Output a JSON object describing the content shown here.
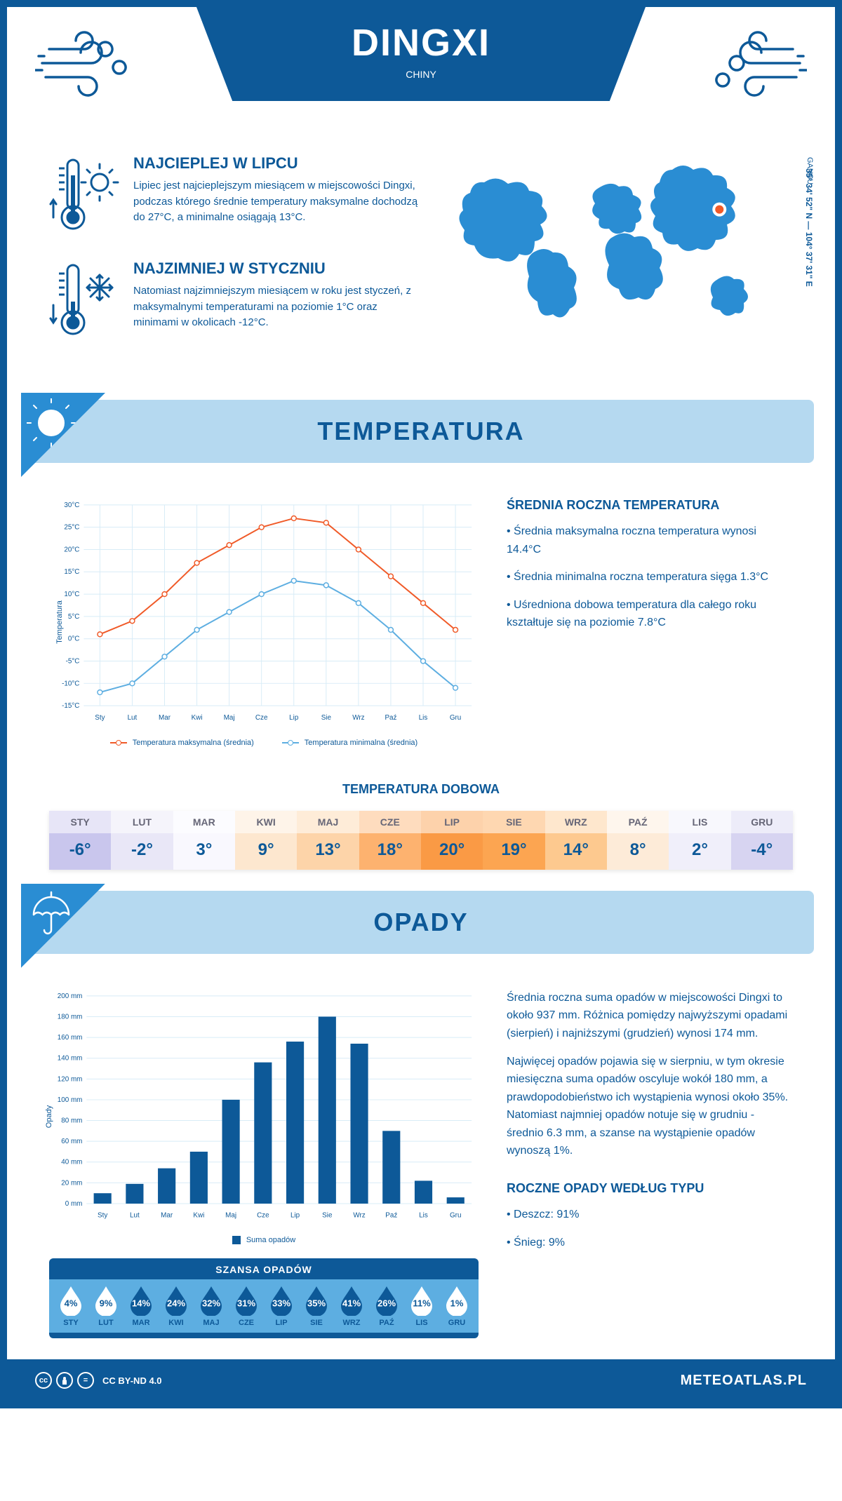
{
  "header": {
    "city": "DINGXI",
    "country": "CHINY",
    "region": "GANSU",
    "coordinates": "35° 34' 52\" N — 104° 37' 31\" E",
    "marker_lon": 104.6,
    "marker_lat": 35.6
  },
  "facts": {
    "warmest": {
      "title": "NAJCIEPLEJ W LIPCU",
      "text": "Lipiec jest najcieplejszym miesiącem w miejscowości Dingxi, podczas którego średnie temperatury maksymalne dochodzą do 27°C, a minimalne osiągają 13°C."
    },
    "coldest": {
      "title": "NAJZIMNIEJ W STYCZNIU",
      "text": "Natomiast najzimniejszym miesiącem w roku jest styczeń, z maksymalnymi temperaturami na poziomie 1°C oraz minimami w okolicach -12°C."
    }
  },
  "sections": {
    "temperature_title": "TEMPERATURA",
    "precip_title": "OPADY",
    "daily_temp_title": "TEMPERATURA DOBOWA"
  },
  "months": [
    "Sty",
    "Lut",
    "Mar",
    "Kwi",
    "Maj",
    "Cze",
    "Lip",
    "Sie",
    "Wrz",
    "Paź",
    "Lis",
    "Gru"
  ],
  "months_upper": [
    "STY",
    "LUT",
    "MAR",
    "KWI",
    "MAJ",
    "CZE",
    "LIP",
    "SIE",
    "WRZ",
    "PAŹ",
    "LIS",
    "GRU"
  ],
  "temperature_chart": {
    "type": "line",
    "ylabel": "Temperatura",
    "ylim": [
      -15,
      30
    ],
    "ytick_step": 5,
    "ytick_suffix": "°C",
    "grid_color": "#d8ecf7",
    "background_color": "#ffffff",
    "series": [
      {
        "name": "Temperatura maksymalna (średnia)",
        "color": "#f05a28",
        "values": [
          1,
          4,
          10,
          17,
          21,
          25,
          27,
          26,
          20,
          14,
          8,
          2
        ]
      },
      {
        "name": "Temperatura minimalna (średnia)",
        "color": "#5daee1",
        "values": [
          -12,
          -10,
          -4,
          2,
          6,
          10,
          13,
          12,
          8,
          2,
          -5,
          -11
        ]
      }
    ],
    "line_width": 2,
    "marker_size": 5
  },
  "temperature_side": {
    "title": "ŚREDNIA ROCZNA TEMPERATURA",
    "bullets": [
      "• Średnia maksymalna roczna temperatura wynosi 14.4°C",
      "• Średnia minimalna roczna temperatura sięga 1.3°C",
      "• Uśredniona dobowa temperatura dla całego roku kształtuje się na poziomie 7.8°C"
    ]
  },
  "daily_temps": {
    "values": [
      "-6°",
      "-2°",
      "3°",
      "9°",
      "13°",
      "18°",
      "20°",
      "19°",
      "14°",
      "8°",
      "2°",
      "-4°"
    ],
    "cell_bg": [
      "#c9c6ed",
      "#e9e7f7",
      "#f9f8fe",
      "#fde7cf",
      "#fdd4a9",
      "#fdb26f",
      "#fa9a45",
      "#fca551",
      "#fdc98f",
      "#fdebd8",
      "#f0effa",
      "#d7d4f1"
    ],
    "label_bg_lighten": 0.55
  },
  "precip_chart": {
    "type": "bar",
    "ylabel": "Opady",
    "ylim": [
      0,
      200
    ],
    "ytick_step": 20,
    "ytick_suffix": " mm",
    "grid_color": "#d8ecf7",
    "background_color": "#ffffff",
    "bar_color": "#0d5998",
    "bar_width": 0.55,
    "values": [
      10,
      19,
      34,
      50,
      100,
      136,
      156,
      180,
      154,
      70,
      22,
      6
    ],
    "legend_label": "Suma opadów"
  },
  "precip_side": {
    "paragraphs": [
      "Średnia roczna suma opadów w miejscowości Dingxi to około 937 mm. Różnica pomiędzy najwyższymi opadami (sierpień) i najniższymi (grudzień) wynosi 174 mm.",
      "Najwięcej opadów pojawia się w sierpniu, w tym okresie miesięczna suma opadów oscyluje wokół 180 mm, a prawdopodobieństwo ich wystąpienia wynosi około 35%. Natomiast najmniej opadów notuje się w grudniu - średnio 6.3 mm, a szanse na wystąpienie opadów wynoszą 1%."
    ],
    "type_title": "ROCZNE OPADY WEDŁUG TYPU",
    "types": [
      "• Deszcz: 91%",
      "• Śnieg: 9%"
    ]
  },
  "precip_chance": {
    "title": "SZANSA OPADÓW",
    "values": [
      4,
      9,
      14,
      24,
      32,
      31,
      33,
      35,
      41,
      26,
      11,
      1
    ],
    "drop_fill_dark": "#0d5998",
    "drop_fill_light": "#ffffff",
    "threshold_light": 12,
    "text_dark": "#0d5998",
    "text_light": "#ffffff"
  },
  "footer": {
    "license": "CC BY-ND 4.0",
    "brand": "METEOATLAS.PL"
  },
  "colors": {
    "primary": "#0d5998",
    "section_bg": "#b5d9f0",
    "accent": "#2a8dd3",
    "map_fill": "#2a8dd3",
    "marker_fill": "#f05a28",
    "marker_ring": "#ffffff"
  }
}
